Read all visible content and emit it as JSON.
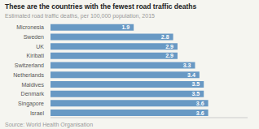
{
  "chart_data": {
    "type": "bar",
    "title": "These are the countries with the fewest road traffic deaths",
    "subtitle": "Estimated road traffic deaths, per 100,000 population, 2015",
    "annotations": [
      "Source: World Health Organisation"
    ],
    "categories": [
      "Micronesia",
      "Sweden",
      "UK",
      "Kiribati",
      "Switzerland",
      "Netherlands",
      "Maldives",
      "Denmark",
      "Singapore",
      "Israel"
    ],
    "values": [
      1.9,
      2.8,
      2.9,
      2.9,
      3.3,
      3.4,
      3.5,
      3.5,
      3.6,
      3.6
    ],
    "color": "#6899c4",
    "xlim": [
      0,
      4.5
    ],
    "orientation": "horizontal",
    "data_labels": true,
    "tick_labels": "y",
    "grid": false
  }
}
